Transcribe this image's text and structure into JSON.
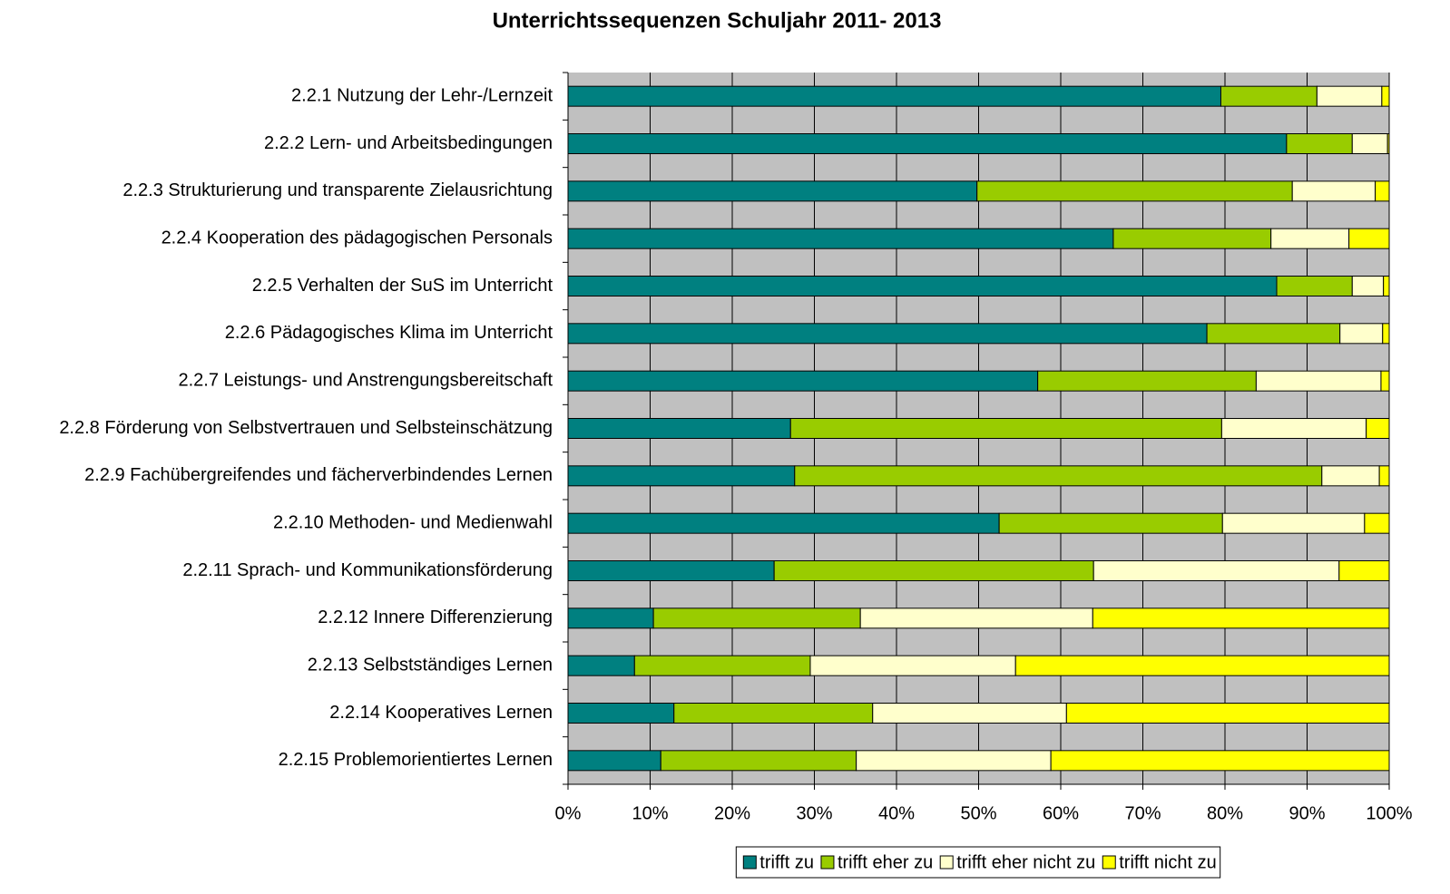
{
  "chart_data": {
    "type": "stacked_barh",
    "title": "Unterrichtssequenzen Schuljahr 2011- 2013",
    "categories": [
      "2.2.1 Nutzung der Lehr-/Lernzeit",
      "2.2.2 Lern- und Arbeitsbedingungen",
      "2.2.3 Strukturierung und transparente Zielausrichtung",
      "2.2.4 Kooperation des pädagogischen Personals",
      "2.2.5 Verhalten der SuS im Unterricht",
      "2.2.6 Pädagogisches Klima im Unterricht",
      "2.2.7 Leistungs- und Anstrengungsbereitschaft",
      "2.2.8 Förderung von Selbstvertrauen und Selbsteinschätzung",
      "2.2.9 Fachübergreifendes und fächerverbindendes Lernen",
      "2.2.10 Methoden- und Medienwahl",
      "2.2.11 Sprach- und Kommunikationsförderung",
      "2.2.12 Innere Differenzierung",
      "2.2.13 Selbstständiges Lernen",
      "2.2.14 Kooperatives Lernen",
      "2.2.15 Problemorientiertes Lernen"
    ],
    "series": [
      {
        "name": "trifft zu",
        "color": "#008080",
        "values": [
          79.5,
          87.5,
          49.8,
          66.4,
          86.3,
          77.8,
          57.2,
          27.1,
          27.6,
          52.5,
          25.1,
          10.4,
          8.1,
          12.9,
          11.3
        ]
      },
      {
        "name": "trifft eher zu",
        "color": "#99cc00",
        "values": [
          11.7,
          8.0,
          38.4,
          19.2,
          9.2,
          16.2,
          26.6,
          52.5,
          64.2,
          27.2,
          38.9,
          25.2,
          21.4,
          24.2,
          23.8
        ]
      },
      {
        "name": "trifft eher nicht zu",
        "color": "#ffffcc",
        "values": [
          7.9,
          4.3,
          10.1,
          9.5,
          3.8,
          5.2,
          15.2,
          17.6,
          7.0,
          17.3,
          29.9,
          28.3,
          25.0,
          23.6,
          23.7
        ]
      },
      {
        "name": "trifft nicht zu",
        "color": "#ffff00",
        "values": [
          0.9,
          0.2,
          1.7,
          4.9,
          0.7,
          0.8,
          1.0,
          2.8,
          1.2,
          3.0,
          6.1,
          36.1,
          45.5,
          39.3,
          41.2
        ]
      }
    ],
    "xlim": [
      0,
      100
    ],
    "xticks": [
      {
        "value": 0,
        "label": "0%"
      },
      {
        "value": 10,
        "label": "10%"
      },
      {
        "value": 20,
        "label": "20%"
      },
      {
        "value": 30,
        "label": "30%"
      },
      {
        "value": 40,
        "label": "40%"
      },
      {
        "value": 50,
        "label": "50%"
      },
      {
        "value": 60,
        "label": "60%"
      },
      {
        "value": 70,
        "label": "70%"
      },
      {
        "value": 80,
        "label": "80%"
      },
      {
        "value": 90,
        "label": "90%"
      },
      {
        "value": 100,
        "label": "100%"
      }
    ],
    "grid": true,
    "legend": "bottom",
    "plot_background": "#c0c0c0"
  }
}
